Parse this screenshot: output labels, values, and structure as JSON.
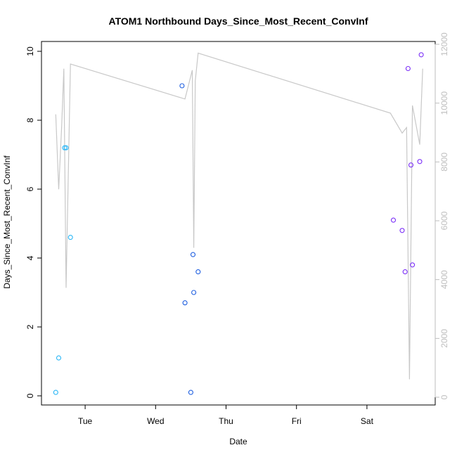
{
  "chart_data": {
    "type": "scatter",
    "title": "ATOM1 Northbound Days_Since_Most_Recent_ConvInf",
    "xlabel": "Date",
    "ylabel": "Days_Since_Most_Recent_ConvInf",
    "ylim": [
      0,
      10
    ],
    "y_ticks": [
      0,
      2,
      4,
      6,
      8,
      10
    ],
    "y2lim": [
      0,
      12000
    ],
    "y2_ticks": [
      0,
      2000,
      4000,
      6000,
      8000,
      10000,
      12000
    ],
    "y2_tick_labels": [
      "0",
      "2000",
      "4000",
      "6000",
      "8000",
      "10000",
      "12000"
    ],
    "x_ticks": [
      "Tue",
      "Wed",
      "Thu",
      "Fri",
      "Sat"
    ],
    "grid": false,
    "colors": {
      "series_cyan": "#29b6f6",
      "series_blue": "#1f5fe0",
      "series_purple": "#7b2ff7",
      "line_gray": "#c8c8c8",
      "right_axis": "#bebebe"
    },
    "series": [
      {
        "color": "series_cyan",
        "points": [
          [
            "Mon 14:00",
            0.1
          ],
          [
            "Mon 15:00",
            1.1
          ],
          [
            "Mon 17:00",
            7.2
          ],
          [
            "Mon 17:30",
            7.2
          ],
          [
            "Mon 19:00",
            4.6
          ]
        ]
      },
      {
        "color": "series_blue",
        "points": [
          [
            "Wed 09:00",
            9.0
          ],
          [
            "Wed 10:00",
            2.7
          ],
          [
            "Wed 12:00",
            0.1
          ],
          [
            "Wed 12:45",
            4.1
          ],
          [
            "Wed 13:00",
            3.0
          ],
          [
            "Wed 14:30",
            3.6
          ]
        ]
      },
      {
        "color": "series_purple",
        "points": [
          [
            "Sat 09:00",
            5.1
          ],
          [
            "Sat 12:00",
            4.8
          ],
          [
            "Sat 13:00",
            3.6
          ],
          [
            "Sat 14:00",
            9.5
          ],
          [
            "Sat 15:00",
            6.7
          ],
          [
            "Sat 15:30",
            3.8
          ],
          [
            "Sat 18:00",
            6.8
          ],
          [
            "Sat 18:30",
            9.9
          ]
        ]
      }
    ],
    "line_series_right_axis": [
      [
        "Mon 14:00",
        9620
      ],
      [
        "Mon 15:00",
        7070
      ],
      [
        "Mon 16:00",
        9210
      ],
      [
        "Mon 16:45",
        11170
      ],
      [
        "Mon 17:30",
        3720
      ],
      [
        "Mon 19:00",
        11330
      ],
      [
        "Wed 10:00",
        10140
      ],
      [
        "Wed 12:30",
        11120
      ],
      [
        "Wed 13:00",
        5080
      ],
      [
        "Wed 13:30",
        10750
      ],
      [
        "Wed 14:30",
        11700
      ],
      [
        "Sat 08:00",
        9660
      ],
      [
        "Sat 12:00",
        8980
      ],
      [
        "Sat 13:30",
        9170
      ],
      [
        "Sat 14:30",
        610
      ],
      [
        "Sat 15:30",
        9920
      ],
      [
        "Sat 18:00",
        8590
      ],
      [
        "Sat 19:00",
        11170
      ]
    ]
  }
}
